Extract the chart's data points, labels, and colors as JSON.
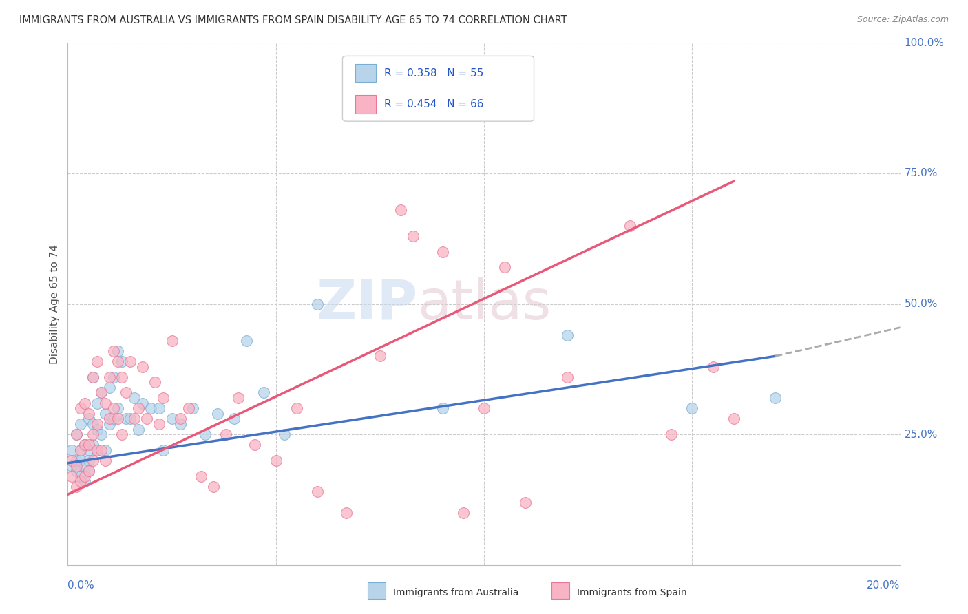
{
  "title": "IMMIGRANTS FROM AUSTRALIA VS IMMIGRANTS FROM SPAIN DISABILITY AGE 65 TO 74 CORRELATION CHART",
  "source": "Source: ZipAtlas.com",
  "ylabel": "Disability Age 65 to 74",
  "xmin": 0.0,
  "xmax": 0.2,
  "ymin": 0.0,
  "ymax": 1.0,
  "legend_r1": "R = 0.358",
  "legend_n1": "N = 55",
  "legend_r2": "R = 0.454",
  "legend_n2": "N = 66",
  "color_australia_fill": "#b8d4ea",
  "color_australia_edge": "#7aafd4",
  "color_spain_fill": "#f8b4c4",
  "color_spain_edge": "#e87898",
  "color_line_australia": "#4472c4",
  "color_line_spain": "#e85878",
  "color_line_dashed": "#aaaaaa",
  "color_axis_text": "#4472c4",
  "color_title": "#333333",
  "color_source": "#888888",
  "color_grid": "#cccccc",
  "color_watermark_zip": "#c8d8f0",
  "color_watermark_atlas": "#d8c8c8",
  "watermark_zip": "ZIP",
  "watermark_atlas": "atlas",
  "australia_x": [
    0.001,
    0.001,
    0.002,
    0.002,
    0.002,
    0.003,
    0.003,
    0.003,
    0.003,
    0.004,
    0.004,
    0.004,
    0.005,
    0.005,
    0.005,
    0.005,
    0.006,
    0.006,
    0.006,
    0.007,
    0.007,
    0.007,
    0.008,
    0.008,
    0.009,
    0.009,
    0.01,
    0.01,
    0.011,
    0.011,
    0.012,
    0.012,
    0.013,
    0.014,
    0.015,
    0.016,
    0.017,
    0.018,
    0.02,
    0.022,
    0.023,
    0.025,
    0.027,
    0.03,
    0.033,
    0.036,
    0.04,
    0.043,
    0.047,
    0.052,
    0.06,
    0.09,
    0.12,
    0.15,
    0.17
  ],
  "australia_y": [
    0.22,
    0.19,
    0.25,
    0.2,
    0.18,
    0.27,
    0.22,
    0.2,
    0.17,
    0.23,
    0.19,
    0.16,
    0.28,
    0.22,
    0.2,
    0.18,
    0.36,
    0.27,
    0.23,
    0.31,
    0.26,
    0.22,
    0.33,
    0.25,
    0.29,
    0.22,
    0.34,
    0.27,
    0.36,
    0.28,
    0.41,
    0.3,
    0.39,
    0.28,
    0.28,
    0.32,
    0.26,
    0.31,
    0.3,
    0.3,
    0.22,
    0.28,
    0.27,
    0.3,
    0.25,
    0.29,
    0.28,
    0.43,
    0.33,
    0.25,
    0.5,
    0.3,
    0.44,
    0.3,
    0.32
  ],
  "spain_x": [
    0.001,
    0.001,
    0.002,
    0.002,
    0.002,
    0.003,
    0.003,
    0.003,
    0.004,
    0.004,
    0.004,
    0.005,
    0.005,
    0.005,
    0.006,
    0.006,
    0.006,
    0.007,
    0.007,
    0.007,
    0.008,
    0.008,
    0.009,
    0.009,
    0.01,
    0.01,
    0.011,
    0.011,
    0.012,
    0.012,
    0.013,
    0.013,
    0.014,
    0.015,
    0.016,
    0.017,
    0.018,
    0.019,
    0.021,
    0.022,
    0.023,
    0.025,
    0.027,
    0.029,
    0.032,
    0.035,
    0.038,
    0.041,
    0.045,
    0.05,
    0.055,
    0.06,
    0.067,
    0.075,
    0.083,
    0.09,
    0.1,
    0.11,
    0.12,
    0.135,
    0.145,
    0.155,
    0.16,
    0.08,
    0.095,
    0.105
  ],
  "spain_y": [
    0.2,
    0.17,
    0.25,
    0.19,
    0.15,
    0.3,
    0.22,
    0.16,
    0.31,
    0.23,
    0.17,
    0.29,
    0.23,
    0.18,
    0.36,
    0.25,
    0.2,
    0.39,
    0.27,
    0.22,
    0.33,
    0.22,
    0.31,
    0.2,
    0.36,
    0.28,
    0.41,
    0.3,
    0.39,
    0.28,
    0.36,
    0.25,
    0.33,
    0.39,
    0.28,
    0.3,
    0.38,
    0.28,
    0.35,
    0.27,
    0.32,
    0.43,
    0.28,
    0.3,
    0.17,
    0.15,
    0.25,
    0.32,
    0.23,
    0.2,
    0.3,
    0.14,
    0.1,
    0.4,
    0.63,
    0.6,
    0.3,
    0.12,
    0.36,
    0.65,
    0.25,
    0.38,
    0.28,
    0.68,
    0.1,
    0.57
  ],
  "aus_line_x0": 0.0,
  "aus_line_y0": 0.195,
  "aus_line_x1": 0.17,
  "aus_line_y1": 0.4,
  "aus_line_dash_x1": 0.2,
  "aus_line_dash_y1": 0.455,
  "spa_line_x0": 0.0,
  "spa_line_y0": 0.135,
  "spa_line_x1": 0.16,
  "spa_line_y1": 0.735
}
